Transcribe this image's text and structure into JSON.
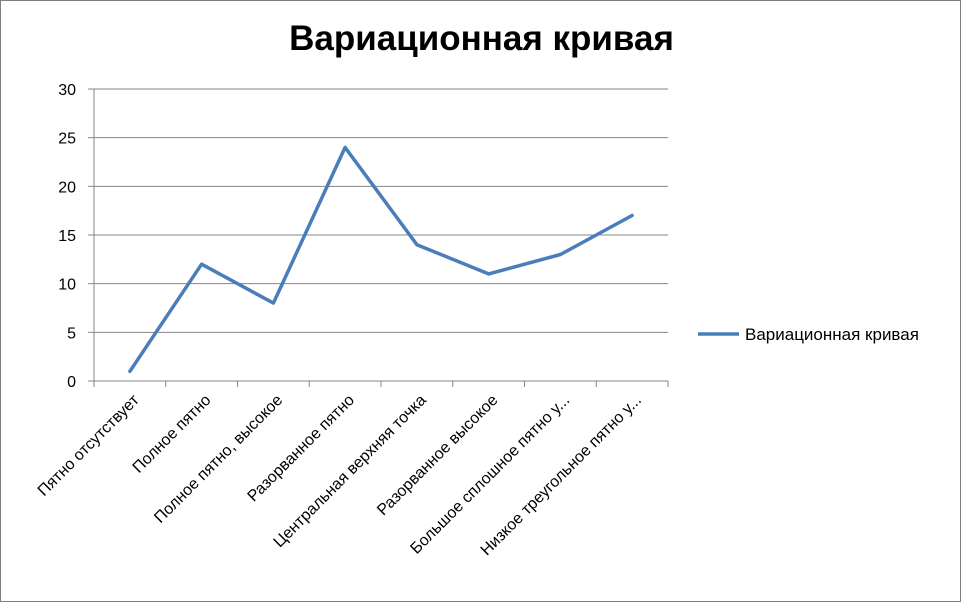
{
  "chart_data": {
    "type": "line",
    "title": "Вариационная кривая",
    "xlabel": "",
    "ylabel": "",
    "categories": [
      "Пятно отсутствует",
      "Полное пятно",
      "Полное пятно, высокое",
      "Разорванное пятно",
      "Центральная верхняя точка",
      "Разорванное высокое",
      "Большое сплошное пятно у...",
      "Низкое треугольное пятно у..."
    ],
    "series": [
      {
        "name": "Вариационная кривая",
        "values": [
          1,
          12,
          8,
          24,
          14,
          11,
          13,
          17
        ],
        "color": "#4a7ebb"
      }
    ],
    "ylim": [
      0,
      30
    ],
    "yticks": [
      0,
      5,
      10,
      15,
      20,
      25,
      30
    ],
    "grid": true,
    "legend": "right"
  }
}
